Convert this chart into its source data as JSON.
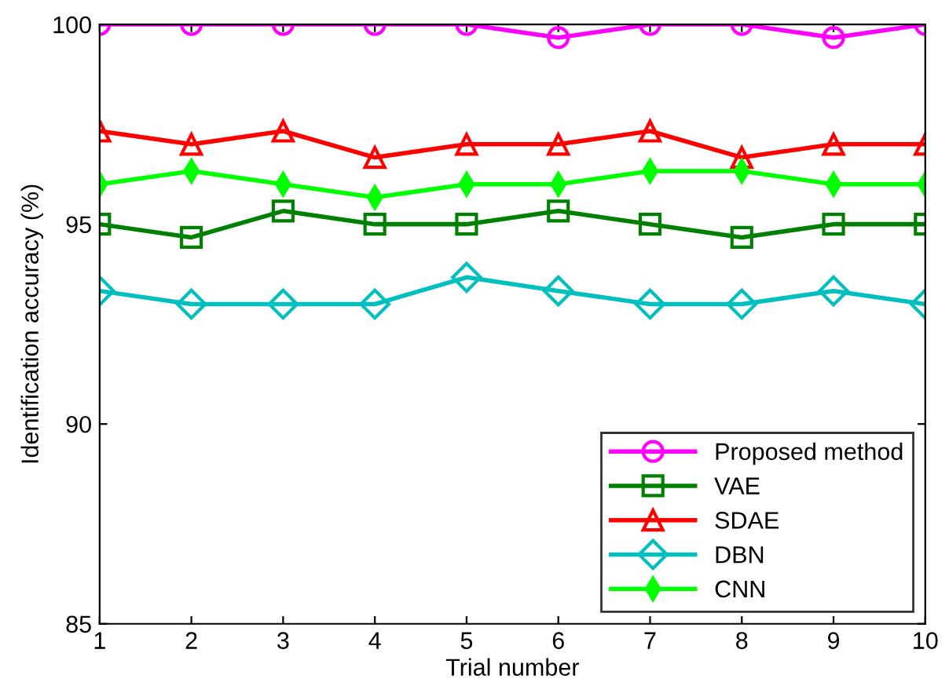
{
  "chart_data": {
    "type": "line",
    "xlabel": "Trial number",
    "ylabel": "Identification accuracy (%)",
    "x": [
      1,
      2,
      3,
      4,
      5,
      6,
      7,
      8,
      9,
      10
    ],
    "series": [
      {
        "name": "Proposed method",
        "color": "#ff00ff",
        "marker": "circle",
        "values": [
          100,
          100,
          100,
          100,
          100,
          99.67,
          100,
          100,
          99.67,
          100
        ]
      },
      {
        "name": "VAE",
        "color": "#008000",
        "marker": "square",
        "values": [
          95,
          94.67,
          95.33,
          95,
          95,
          95.33,
          95,
          94.67,
          95,
          95
        ]
      },
      {
        "name": "SDAE",
        "color": "#ff0000",
        "marker": "triangle",
        "values": [
          97.33,
          97,
          97.33,
          96.67,
          97,
          97,
          97.33,
          96.67,
          97,
          97
        ]
      },
      {
        "name": "DBN",
        "color": "#00bfbf",
        "marker": "diamond",
        "values": [
          93.33,
          93,
          93,
          93,
          93.67,
          93.33,
          93,
          93,
          93.33,
          93
        ]
      },
      {
        "name": "CNN",
        "color": "#00ff00",
        "marker": "diamond_filled",
        "values": [
          96,
          96.33,
          96,
          95.67,
          96,
          96,
          96.33,
          96.33,
          96,
          96
        ]
      }
    ],
    "xlim": [
      1,
      10
    ],
    "xticks": [
      1,
      2,
      3,
      4,
      5,
      6,
      7,
      8,
      9,
      10
    ],
    "ylim": [
      85,
      100
    ],
    "yticks": [
      85,
      90,
      95,
      100
    ],
    "legend": "bottom right",
    "grid": false,
    "line_style": "solid"
  }
}
